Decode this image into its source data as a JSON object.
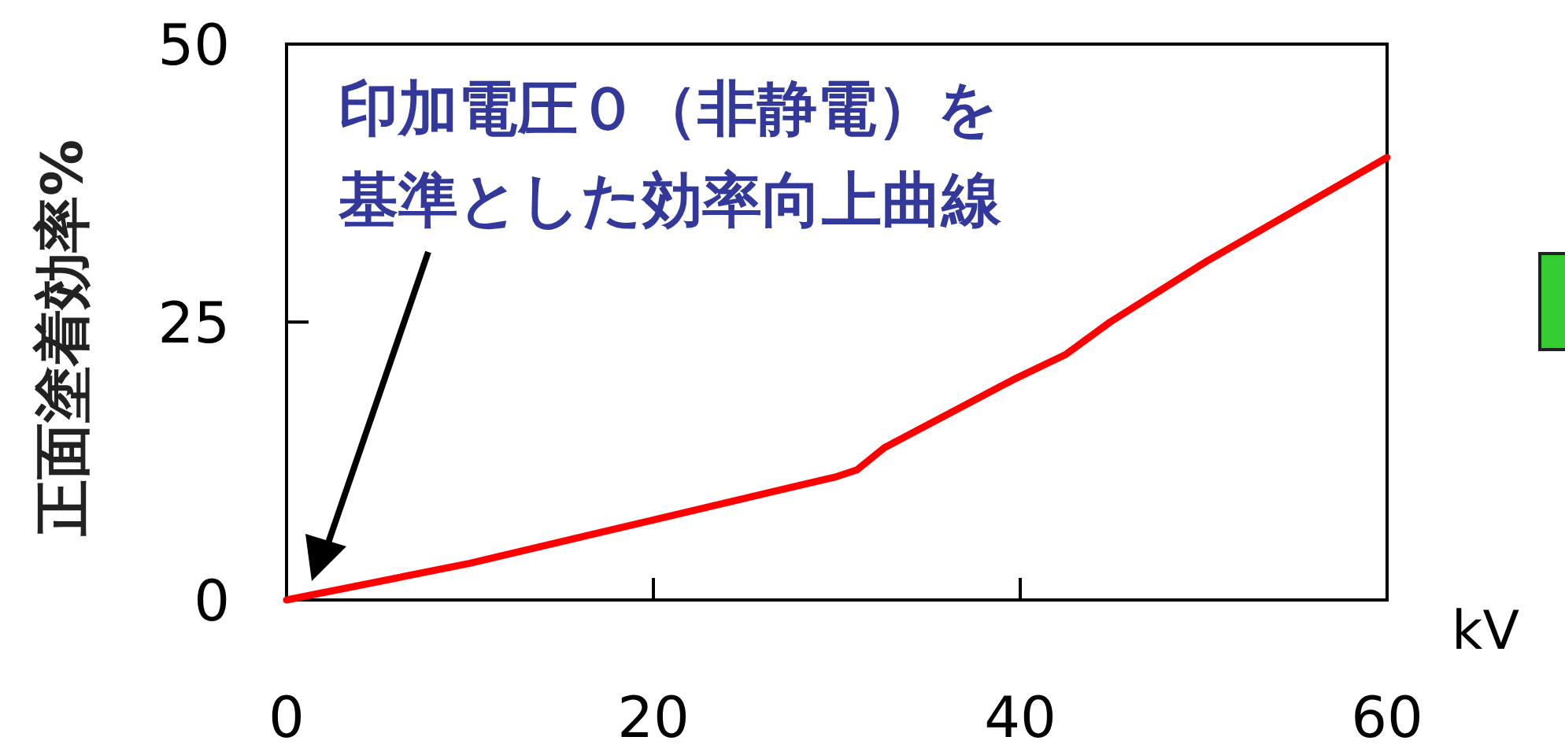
{
  "chart_data": {
    "type": "line",
    "xlabel": "kV",
    "ylabel": "正面塗着効率%",
    "x": [
      0,
      10,
      20,
      30,
      31.1,
      32.6,
      39.6,
      42.5,
      44.9,
      50.2,
      60
    ],
    "series": [
      {
        "color": "#ff0000",
        "values": [
          0,
          3.3,
          7.2,
          11.1,
          11.7,
          13.7,
          19.8,
          22.1,
          25.0,
          30.5,
          39.8
        ]
      }
    ],
    "xlim": [
      0,
      60
    ],
    "xticks": [
      0,
      20,
      40,
      60
    ],
    "ylim": [
      0,
      50
    ],
    "yticks": [
      0,
      25,
      50
    ],
    "annotations": [
      "印加電圧０（非静電）を基準とした効率向上曲線"
    ]
  }
}
